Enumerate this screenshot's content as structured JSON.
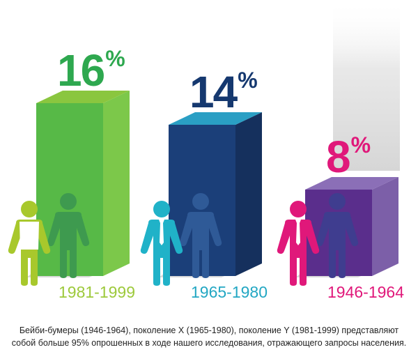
{
  "chart_data": {
    "type": "bar",
    "categories": [
      "1981-1999",
      "1965-1980",
      "1946-1964"
    ],
    "values": [
      16,
      14,
      8
    ],
    "value_suffix": "%",
    "colors": {
      "1981-1999": {
        "front": "#57b947",
        "side": "#7cc84a",
        "top": "#8ac63f",
        "text": "#2ea84f",
        "label": "#9dc93b",
        "person": "#a8c82c"
      },
      "1965-1980": {
        "front": "#1b3f79",
        "side": "#15305d",
        "top": "#2a9fc4",
        "text": "#15386f",
        "label": "#23a7c3",
        "person": "#20b2c8"
      },
      "1946-1964": {
        "front": "#5a2e8c",
        "side": "#7c5fa8",
        "top": "#8b6fb7",
        "text": "#e0187a",
        "label": "#e0187a",
        "person": "#e0187a"
      }
    },
    "title": "",
    "xlabel": "",
    "ylabel": ""
  },
  "caption": {
    "line1": "Бейби-бумеры (1946-1964), поколение X (1965-1980), поколение Y (1981-1999) представляют",
    "line2": "собой больше 95% опрошенных в ходе нашего исследования, отражающего запросы населения."
  }
}
